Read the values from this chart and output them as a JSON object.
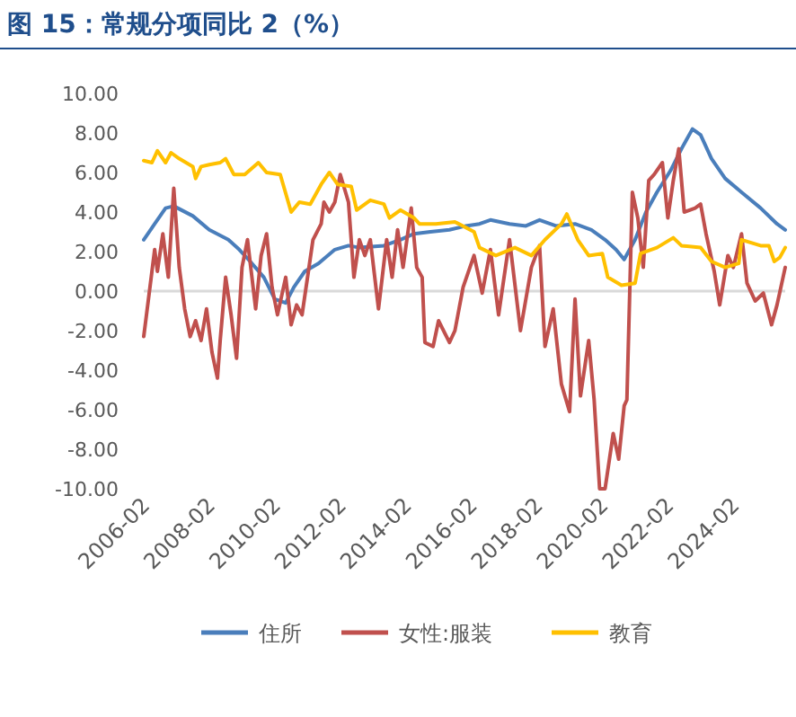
{
  "chart_data": {
    "type": "line",
    "title": "图 15：常规分项同比 2（%）",
    "xlim": [
      "2006-02",
      "2025-09"
    ],
    "xticks": [
      "2006-02",
      "2008-02",
      "2010-02",
      "2012-02",
      "2014-02",
      "2016-02",
      "2018-02",
      "2020-02",
      "2022-02",
      "2024-02"
    ],
    "ylim": [
      -10,
      10
    ],
    "yticks": [
      {
        "value": -10,
        "label": "-10.00"
      },
      {
        "value": -8,
        "label": "-8.00"
      },
      {
        "value": -6,
        "label": "-6.00"
      },
      {
        "value": -4,
        "label": "-4.00"
      },
      {
        "value": -2,
        "label": "-2.00"
      },
      {
        "value": 0,
        "label": "0.00"
      },
      {
        "value": 2,
        "label": "2.00"
      },
      {
        "value": 4,
        "label": "4.00"
      },
      {
        "value": 6,
        "label": "6.00"
      },
      {
        "value": 8,
        "label": "8.00"
      },
      {
        "value": 10,
        "label": "10.00"
      }
    ],
    "legend": "bottom",
    "grid": false,
    "ref_lines": [
      {
        "axis": "y",
        "value": 0,
        "color": "#d9d9d9"
      }
    ],
    "marker": "none",
    "line_style": "solid",
    "series": [
      {
        "name": "住所",
        "color": "#4a7ebb",
        "x": [
          "2006-02",
          "2006-06",
          "2006-10",
          "2007-01",
          "2007-08",
          "2008-02",
          "2008-09",
          "2009-01",
          "2009-05",
          "2009-10",
          "2010-02",
          "2010-06",
          "2010-09",
          "2011-01",
          "2011-06",
          "2011-12",
          "2012-05",
          "2012-09",
          "2013-06",
          "2013-12",
          "2014-05",
          "2014-11",
          "2015-06",
          "2015-12",
          "2016-05",
          "2016-09",
          "2017-04",
          "2017-10",
          "2018-03",
          "2018-09",
          "2019-04",
          "2019-10",
          "2020-03",
          "2020-07",
          "2020-10",
          "2021-02",
          "2021-06",
          "2021-10",
          "2022-03",
          "2022-07",
          "2022-11",
          "2023-02",
          "2023-06",
          "2023-11",
          "2024-05",
          "2024-12",
          "2025-06",
          "2025-09"
        ],
        "values": [
          2.6,
          3.4,
          4.2,
          4.3,
          3.8,
          3.1,
          2.6,
          2.1,
          1.5,
          0.7,
          -0.4,
          -0.6,
          0.2,
          1.0,
          1.4,
          2.1,
          2.3,
          2.2,
          2.3,
          2.6,
          2.9,
          3.0,
          3.1,
          3.3,
          3.4,
          3.6,
          3.4,
          3.3,
          3.6,
          3.3,
          3.4,
          3.1,
          2.6,
          2.1,
          1.6,
          2.6,
          4.0,
          5.0,
          6.1,
          7.2,
          8.2,
          7.9,
          6.7,
          5.7,
          5.0,
          4.2,
          3.4,
          3.1
        ]
      },
      {
        "name": "女性:服装",
        "color": "#c0504d",
        "x": [
          "2006-02",
          "2006-04",
          "2006-06",
          "2006-07",
          "2006-09",
          "2006-11",
          "2007-01",
          "2007-03",
          "2007-05",
          "2007-07",
          "2007-09",
          "2007-11",
          "2008-01",
          "2008-03",
          "2008-05",
          "2008-06",
          "2008-08",
          "2008-10",
          "2008-12",
          "2009-02",
          "2009-04",
          "2009-07",
          "2009-09",
          "2009-11",
          "2010-01",
          "2010-03",
          "2010-06",
          "2010-08",
          "2010-10",
          "2010-12",
          "2011-02",
          "2011-04",
          "2011-07",
          "2011-08",
          "2011-10",
          "2011-12",
          "2012-02",
          "2012-05",
          "2012-07",
          "2012-09",
          "2012-11",
          "2013-01",
          "2013-04",
          "2013-07",
          "2013-09",
          "2013-11",
          "2014-01",
          "2014-04",
          "2014-06",
          "2014-08",
          "2014-09",
          "2014-12",
          "2015-02",
          "2015-06",
          "2015-08",
          "2015-11",
          "2016-03",
          "2016-06",
          "2016-09",
          "2016-12",
          "2017-04",
          "2017-08",
          "2017-12",
          "2018-03",
          "2018-05",
          "2018-08",
          "2018-11",
          "2019-02",
          "2019-04",
          "2019-06",
          "2019-09",
          "2019-11",
          "2020-01",
          "2020-03",
          "2020-06",
          "2020-08",
          "2020-10",
          "2020-11",
          "2021-01",
          "2021-03",
          "2021-05",
          "2021-07",
          "2021-09",
          "2021-12",
          "2022-02",
          "2022-04",
          "2022-06",
          "2022-08",
          "2022-12",
          "2023-02",
          "2023-04",
          "2023-07",
          "2023-09",
          "2023-12",
          "2024-02",
          "2024-05",
          "2024-07",
          "2024-10",
          "2025-01",
          "2025-04",
          "2025-06",
          "2025-09"
        ],
        "values": [
          -2.3,
          -0.1,
          2.1,
          1.0,
          2.9,
          0.7,
          5.2,
          1.2,
          -0.9,
          -2.3,
          -1.5,
          -2.5,
          -0.9,
          -3.1,
          -4.4,
          -2.5,
          0.7,
          -1.2,
          -3.4,
          1.2,
          2.6,
          -0.9,
          1.8,
          2.9,
          0.2,
          -1.2,
          0.7,
          -1.7,
          -0.7,
          -1.2,
          0.7,
          2.6,
          3.4,
          4.5,
          4.0,
          4.5,
          5.9,
          4.5,
          0.7,
          2.6,
          1.8,
          2.6,
          -0.9,
          2.6,
          0.7,
          3.1,
          1.2,
          4.2,
          1.2,
          0.7,
          -2.6,
          -2.8,
          -1.5,
          -2.6,
          -2.0,
          0.2,
          1.8,
          -0.1,
          2.1,
          -1.2,
          2.6,
          -2.0,
          1.2,
          2.3,
          -2.8,
          -0.9,
          -4.7,
          -6.1,
          -0.4,
          -5.3,
          -2.5,
          -5.5,
          -10.0,
          -10.0,
          -7.2,
          -8.5,
          -5.8,
          -5.5,
          5.0,
          3.7,
          1.2,
          5.6,
          5.9,
          6.5,
          3.7,
          5.6,
          7.2,
          4.0,
          4.2,
          4.4,
          2.9,
          1.0,
          -0.7,
          1.8,
          1.2,
          2.9,
          0.4,
          -0.5,
          -0.1,
          -1.7,
          -0.7,
          1.2
        ]
      },
      {
        "name": "教育",
        "color": "#ffc000",
        "x": [
          "2006-02",
          "2006-05",
          "2006-07",
          "2006-10",
          "2006-12",
          "2007-03",
          "2007-08",
          "2007-09",
          "2007-11",
          "2008-02",
          "2008-06",
          "2008-08",
          "2008-11",
          "2009-03",
          "2009-08",
          "2009-11",
          "2010-04",
          "2010-08",
          "2010-11",
          "2011-03",
          "2011-07",
          "2011-10",
          "2012-01",
          "2012-06",
          "2012-08",
          "2013-01",
          "2013-06",
          "2013-08",
          "2013-12",
          "2014-05",
          "2014-07",
          "2015-01",
          "2015-08",
          "2016-03",
          "2016-05",
          "2016-11",
          "2017-06",
          "2017-12",
          "2018-05",
          "2018-11",
          "2019-01",
          "2019-05",
          "2019-09",
          "2020-02",
          "2020-04",
          "2020-09",
          "2021-02",
          "2021-04",
          "2021-10",
          "2022-04",
          "2022-07",
          "2023-02",
          "2023-06",
          "2023-11",
          "2024-04",
          "2024-05",
          "2024-12",
          "2025-03",
          "2025-05",
          "2025-07",
          "2025-09"
        ],
        "values": [
          6.6,
          6.5,
          7.1,
          6.5,
          7.0,
          6.7,
          6.3,
          5.7,
          6.3,
          6.4,
          6.5,
          6.7,
          5.9,
          5.9,
          6.5,
          6.0,
          5.9,
          4.0,
          4.5,
          4.4,
          5.4,
          6.0,
          5.4,
          5.3,
          4.1,
          4.6,
          4.4,
          3.7,
          4.1,
          3.7,
          3.4,
          3.4,
          3.5,
          3.0,
          2.2,
          1.8,
          2.2,
          1.8,
          2.6,
          3.4,
          3.9,
          2.6,
          1.8,
          1.9,
          0.7,
          0.3,
          0.4,
          1.9,
          2.2,
          2.7,
          2.3,
          2.2,
          1.5,
          1.2,
          1.4,
          2.6,
          2.3,
          2.3,
          1.5,
          1.7,
          2.2
        ]
      }
    ]
  }
}
